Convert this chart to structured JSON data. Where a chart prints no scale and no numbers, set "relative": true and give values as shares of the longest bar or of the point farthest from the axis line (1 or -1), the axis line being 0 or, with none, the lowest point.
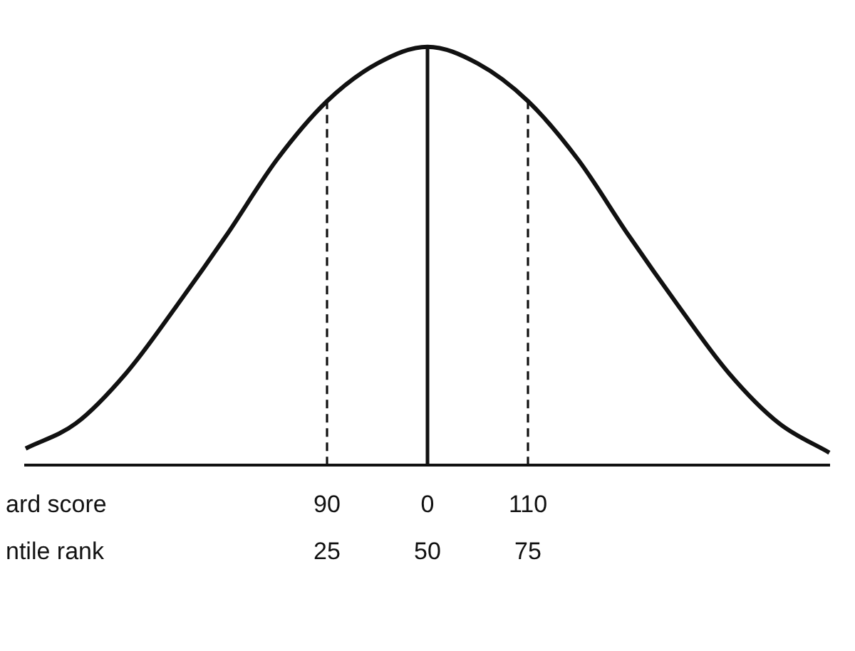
{
  "chart_data": {
    "type": "line",
    "relative": true,
    "color": "#111111",
    "categories": [
      null,
      null,
      null,
      null,
      null,
      null,
      "90",
      null,
      "0",
      null,
      "110",
      null,
      null,
      null,
      null,
      null,
      null
    ],
    "values": [
      0.04,
      0.1,
      0.22,
      0.38,
      0.55,
      0.73,
      0.87,
      0.96,
      1,
      0.96,
      0.87,
      0.73,
      0.55,
      0.38,
      0.22,
      0.1,
      0.03
    ],
    "xlabel": "ard score",
    "annotations": [
      "ntile rank",
      "25",
      "50",
      "75"
    ],
    "ref_lines": [
      {
        "axis": "x",
        "value": "90",
        "line_style": "dashed"
      },
      {
        "axis": "x",
        "value": "0",
        "line_style": "solid"
      },
      {
        "axis": "x",
        "value": "110",
        "line_style": "dashed"
      }
    ],
    "grid": false,
    "legend": false,
    "marker": "none",
    "line_style": "solid"
  }
}
